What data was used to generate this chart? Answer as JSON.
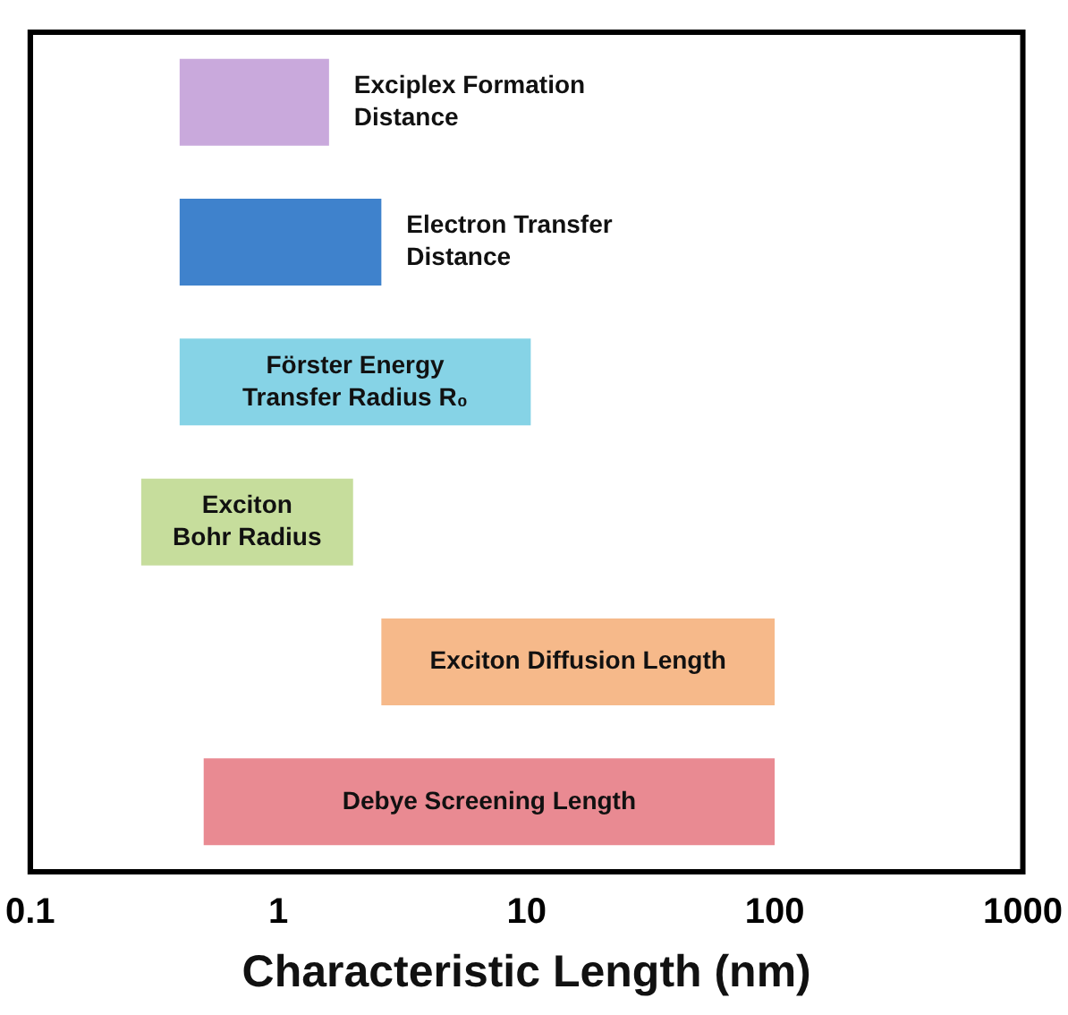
{
  "chart_data": {
    "type": "bar",
    "orientation": "horizontal",
    "log": "x",
    "xlabel": "Characteristic Length (nm)",
    "categories": [
      "Exciplex Formation Distance",
      "Electron Transfer Distance",
      "Förster Energy Transfer Radius R₀",
      "Exciton Bohr Radius",
      "Exciton Diffusion Length",
      "Debye Screening Length"
    ],
    "base": [
      0.4,
      0.4,
      0.4,
      0.28,
      2.6,
      0.5
    ],
    "values": [
      1.2,
      2.2,
      10,
      1.72,
      97.4,
      99.5
    ],
    "colors": [
      "#c9a9dc",
      "#3f82cc",
      "#86d3e6",
      "#c6dd9c",
      "#f6b98a",
      "#e98a92"
    ],
    "xlim": [
      0.1,
      1000
    ],
    "xticks": [
      0.1,
      1,
      10,
      100,
      1000
    ],
    "grid": false,
    "legend": false
  }
}
